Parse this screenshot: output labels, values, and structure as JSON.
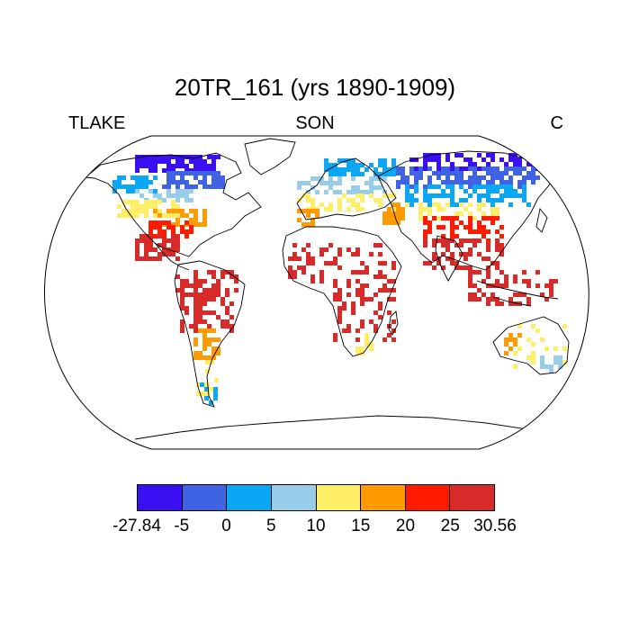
{
  "title": "20TR_161 (yrs 1890-1909)",
  "subtitle_left": "TLAKE",
  "subtitle_center": "SON",
  "subtitle_right": "C",
  "colorbar": {
    "colors": [
      "#3a10f3",
      "#3f63e2",
      "#0aa7f4",
      "#97cde9",
      "#ffee66",
      "#ff9a00",
      "#ff1a00",
      "#d92a2a"
    ],
    "labels": [
      "-27.84",
      "-5",
      "0",
      "5",
      "10",
      "15",
      "20",
      "25",
      "30.56"
    ]
  }
}
